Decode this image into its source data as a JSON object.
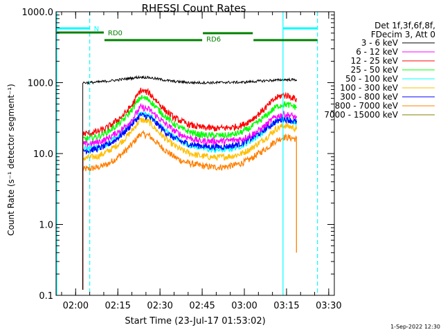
{
  "chart_data": {
    "type": "line",
    "title": "RHESSI Count Rates",
    "xlabel": "Start Time (23-Jul-17 01:53:02)",
    "ylabel": "Count Rate (s⁻¹ detector segment⁻¹)",
    "yscale": "log",
    "ylim": [
      0.1,
      1000
    ],
    "xlim": [
      "01:53:02",
      "03:32:00"
    ],
    "x_ticks": [
      "02:00",
      "02:15",
      "02:30",
      "02:45",
      "03:00",
      "03:15",
      "03:30"
    ],
    "y_ticks": [
      "0.1",
      "1.0",
      "10.0",
      "100.0",
      "1000.0"
    ],
    "legend_position": "right",
    "legend_header": [
      "Det 1f,3f,6f,8f,",
      "FDecim 3, Att 0"
    ],
    "timestamp": "1-Sep-2022 12:30",
    "x_minutes": [
      9.5,
      12,
      15,
      18,
      21,
      24,
      27,
      30,
      33,
      36,
      39,
      42,
      45,
      48,
      51,
      54,
      57,
      60,
      63,
      66,
      69,
      72,
      75,
      78,
      81,
      84,
      85.5
    ],
    "series": [
      {
        "name": "3 - 6 keV",
        "color": "#000000",
        "values": [
          100,
          100,
          102,
          105,
          108,
          112,
          116,
          120,
          118,
          113,
          108,
          104,
          102,
          100,
          100,
          100,
          100,
          101,
          101,
          101,
          103,
          105,
          107,
          108,
          110,
          110,
          110
        ]
      },
      {
        "name": "6 - 12 keV",
        "color": "#ff00ff",
        "values": [
          13.5,
          13.8,
          14.5,
          16,
          19,
          23,
          30,
          45,
          42,
          33,
          26,
          21,
          18,
          16.5,
          15,
          15,
          15,
          15,
          15.5,
          16,
          18,
          21,
          26,
          33,
          36,
          34,
          32
        ]
      },
      {
        "name": "12 - 25 keV",
        "color": "#ff0000",
        "values": [
          19,
          19.5,
          20.5,
          23,
          28,
          35,
          48,
          78,
          72,
          54,
          40,
          32,
          28,
          25,
          23.5,
          23,
          22.5,
          23,
          23.5,
          25,
          29,
          36,
          46,
          60,
          68,
          62,
          58
        ]
      },
      {
        "name": "25 - 50 keV",
        "color": "#00ff00",
        "values": [
          16,
          16.5,
          17.5,
          20,
          24,
          30,
          42,
          62,
          58,
          43,
          33,
          26,
          22,
          20,
          18.5,
          18,
          18,
          18,
          18.5,
          20,
          23,
          28,
          35,
          45,
          50,
          47,
          45
        ]
      },
      {
        "name": "50 - 100 keV",
        "color": "#00ffff",
        "values": [
          11.5,
          11.8,
          12.2,
          13.5,
          16,
          20,
          27,
          37,
          35,
          27,
          21,
          17,
          14.5,
          13,
          12.2,
          11.5,
          11.2,
          11.5,
          12,
          13,
          15,
          18,
          22,
          28,
          31,
          29,
          28
        ]
      },
      {
        "name": "100 - 300 keV",
        "color": "#ffbf00",
        "values": [
          8.5,
          8.8,
          9.2,
          10.5,
          12.5,
          15.5,
          21,
          30,
          28,
          21,
          16,
          13,
          11,
          10,
          9.3,
          9,
          8.8,
          9,
          9.3,
          10,
          11.5,
          14,
          17,
          22,
          25,
          23.5,
          22
        ]
      },
      {
        "name": "300 - 800 keV",
        "color": "#0000ff",
        "values": [
          11,
          11.2,
          11.8,
          13,
          15.5,
          19.5,
          26,
          35,
          33,
          26,
          20,
          16.5,
          14.5,
          13.5,
          13,
          12.5,
          12.5,
          12.5,
          13,
          14,
          16,
          19,
          23,
          28,
          31,
          29,
          28
        ]
      },
      {
        "name": "800 - 7000 keV",
        "color": "#ff8000",
        "values": [
          6,
          6.1,
          6.4,
          7,
          8.3,
          10.3,
          13.5,
          19,
          18,
          14,
          11,
          9,
          7.8,
          7.2,
          6.8,
          6.5,
          6.4,
          6.5,
          6.8,
          7.3,
          8.3,
          10,
          12,
          15,
          17,
          16.5,
          16
        ]
      },
      {
        "name": "7000 - 15000 keV",
        "color": "#808000",
        "values": []
      }
    ],
    "attenuator_annotations": [
      {
        "label": "N",
        "color": "#00ffff",
        "start": "01:53:02",
        "end": "02:05:00"
      },
      {
        "label": "",
        "color": "#00ffff",
        "start": "03:13:30",
        "end": "03:26:00"
      },
      {
        "label": "RD0",
        "color": "#008000",
        "start": "01:53:02",
        "end": "02:10:00"
      },
      {
        "label": "RD6",
        "color": "#008000",
        "start": "02:10:00",
        "end": "02:45:00"
      },
      {
        "label": "",
        "color": "#008000",
        "start": "02:45:00",
        "end": "03:03:00"
      },
      {
        "label": "",
        "color": "#008000",
        "start": "03:03:00",
        "end": "03:26:00"
      }
    ]
  }
}
